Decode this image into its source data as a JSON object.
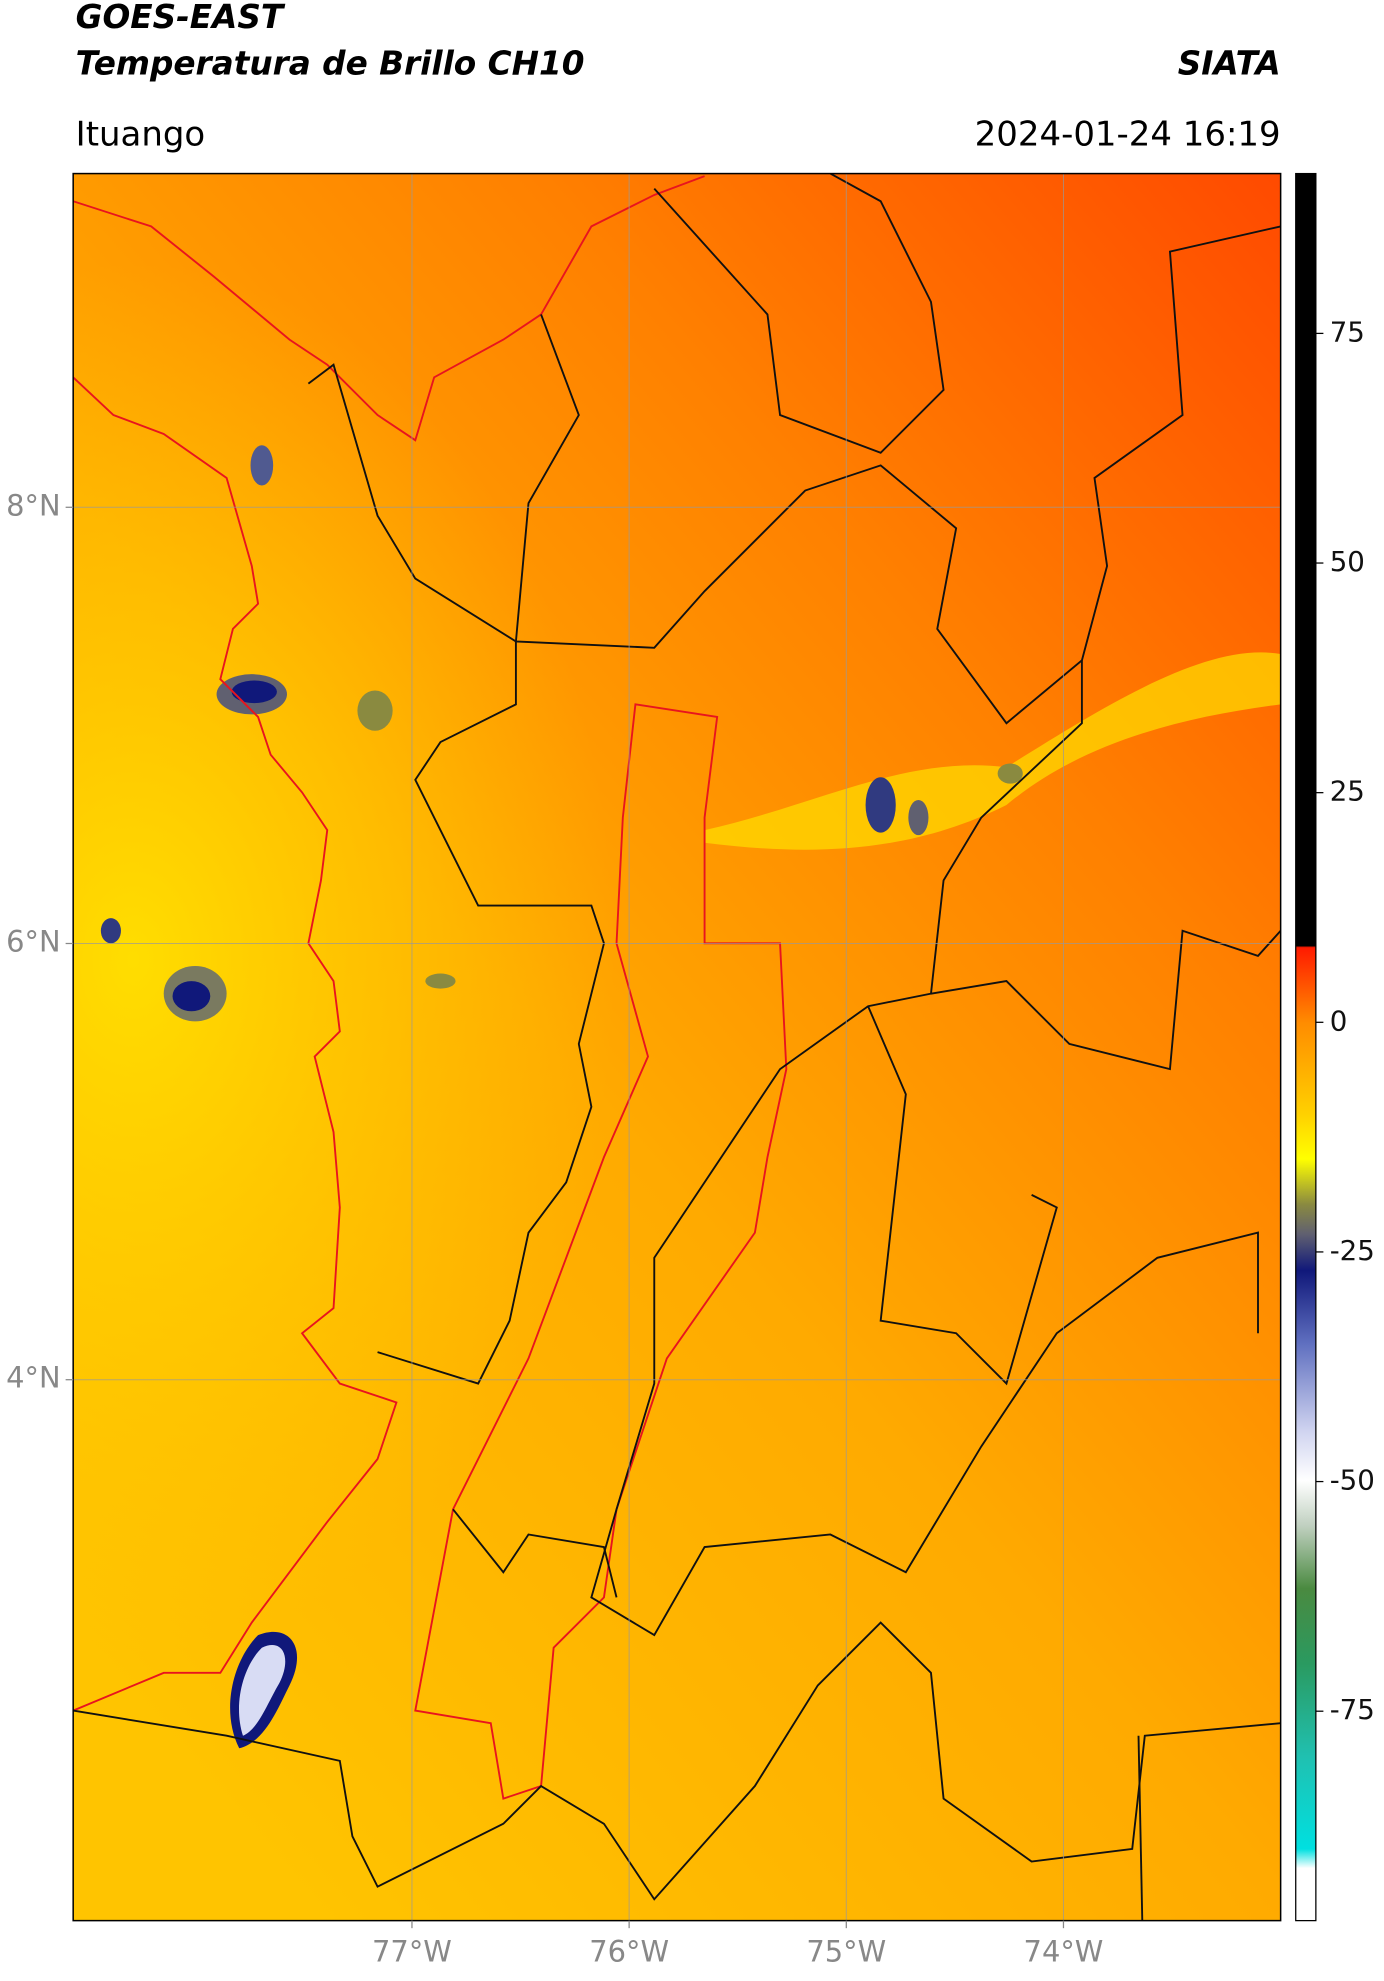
{
  "header": {
    "title": "GOES-EAST",
    "subtitle": "Temperatura de Brillo CH10",
    "organization": "SIATA",
    "location": "Ituango",
    "datetime": "2024-01-24 16:19"
  },
  "map": {
    "xlim": [
      -78.56,
      -73.0
    ],
    "ylim": [
      1.52,
      9.53
    ],
    "xticks": [
      {
        "value": -77,
        "label": "77°W"
      },
      {
        "value": -76,
        "label": "76°W"
      },
      {
        "value": -75,
        "label": "75°W"
      },
      {
        "value": -74,
        "label": "74°W"
      }
    ],
    "yticks": [
      {
        "value": 8,
        "label": "8°N"
      },
      {
        "value": 6,
        "label": "6°N"
      },
      {
        "value": 4,
        "label": "4°N"
      }
    ],
    "grid": true
  },
  "colorbar": {
    "lim": [
      -97.8,
      92.4
    ],
    "ticks": [
      -75,
      -50,
      -25,
      0,
      25,
      50,
      75
    ]
  }
}
